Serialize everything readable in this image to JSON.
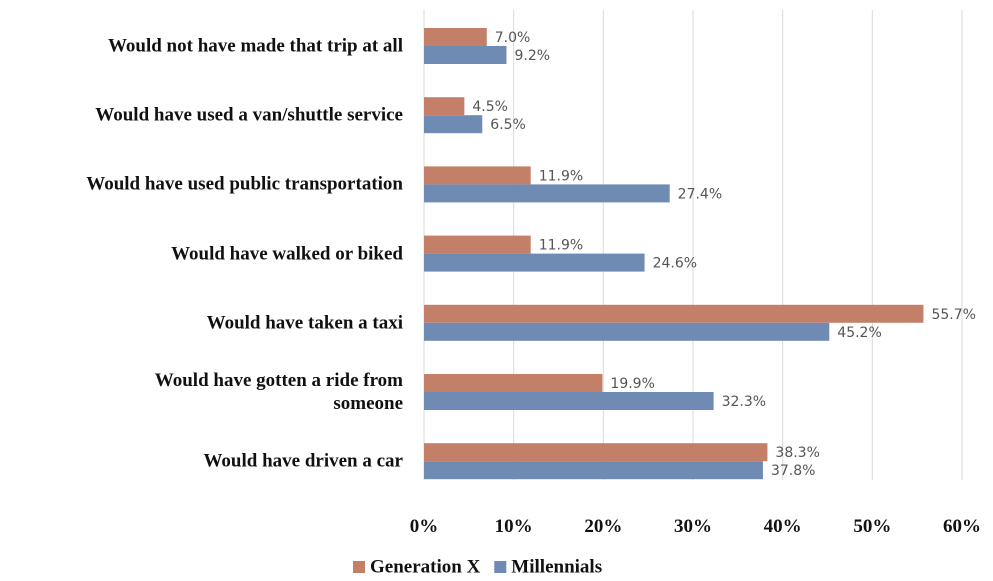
{
  "chart_data": {
    "type": "bar",
    "orientation": "horizontal",
    "categories": [
      "Would not have made that trip at all",
      "Would have used a van/shuttle service",
      "Would have used public transportation",
      "Would have walked or biked",
      "Would have taken a taxi",
      "Would have gotten a ride from\nsomeone",
      "Would have driven a car"
    ],
    "series": [
      {
        "name": "Generation X",
        "color": "#c47f69",
        "values": [
          7.0,
          4.5,
          11.9,
          11.9,
          55.7,
          19.9,
          38.3
        ],
        "value_labels": [
          "7.0%",
          "4.5%",
          "11.9%",
          "11.9%",
          "55.7%",
          "19.9%",
          "38.3%"
        ]
      },
      {
        "name": "Millennials",
        "color": "#6f8bb3",
        "values": [
          9.2,
          6.5,
          27.4,
          24.6,
          45.2,
          32.3,
          37.8
        ],
        "value_labels": [
          "9.2%",
          "6.5%",
          "27.4%",
          "24.6%",
          "45.2%",
          "32.3%",
          "37.8%"
        ]
      }
    ],
    "xlim": [
      0,
      60
    ],
    "xticks": [
      {
        "value": 0,
        "label": "0%"
      },
      {
        "value": 10,
        "label": "10%"
      },
      {
        "value": 20,
        "label": "20%"
      },
      {
        "value": 30,
        "label": "30%"
      },
      {
        "value": 40,
        "label": "40%"
      },
      {
        "value": 50,
        "label": "50%"
      },
      {
        "value": 60,
        "label": "60%"
      }
    ],
    "grid": true,
    "legend": "bottom"
  }
}
